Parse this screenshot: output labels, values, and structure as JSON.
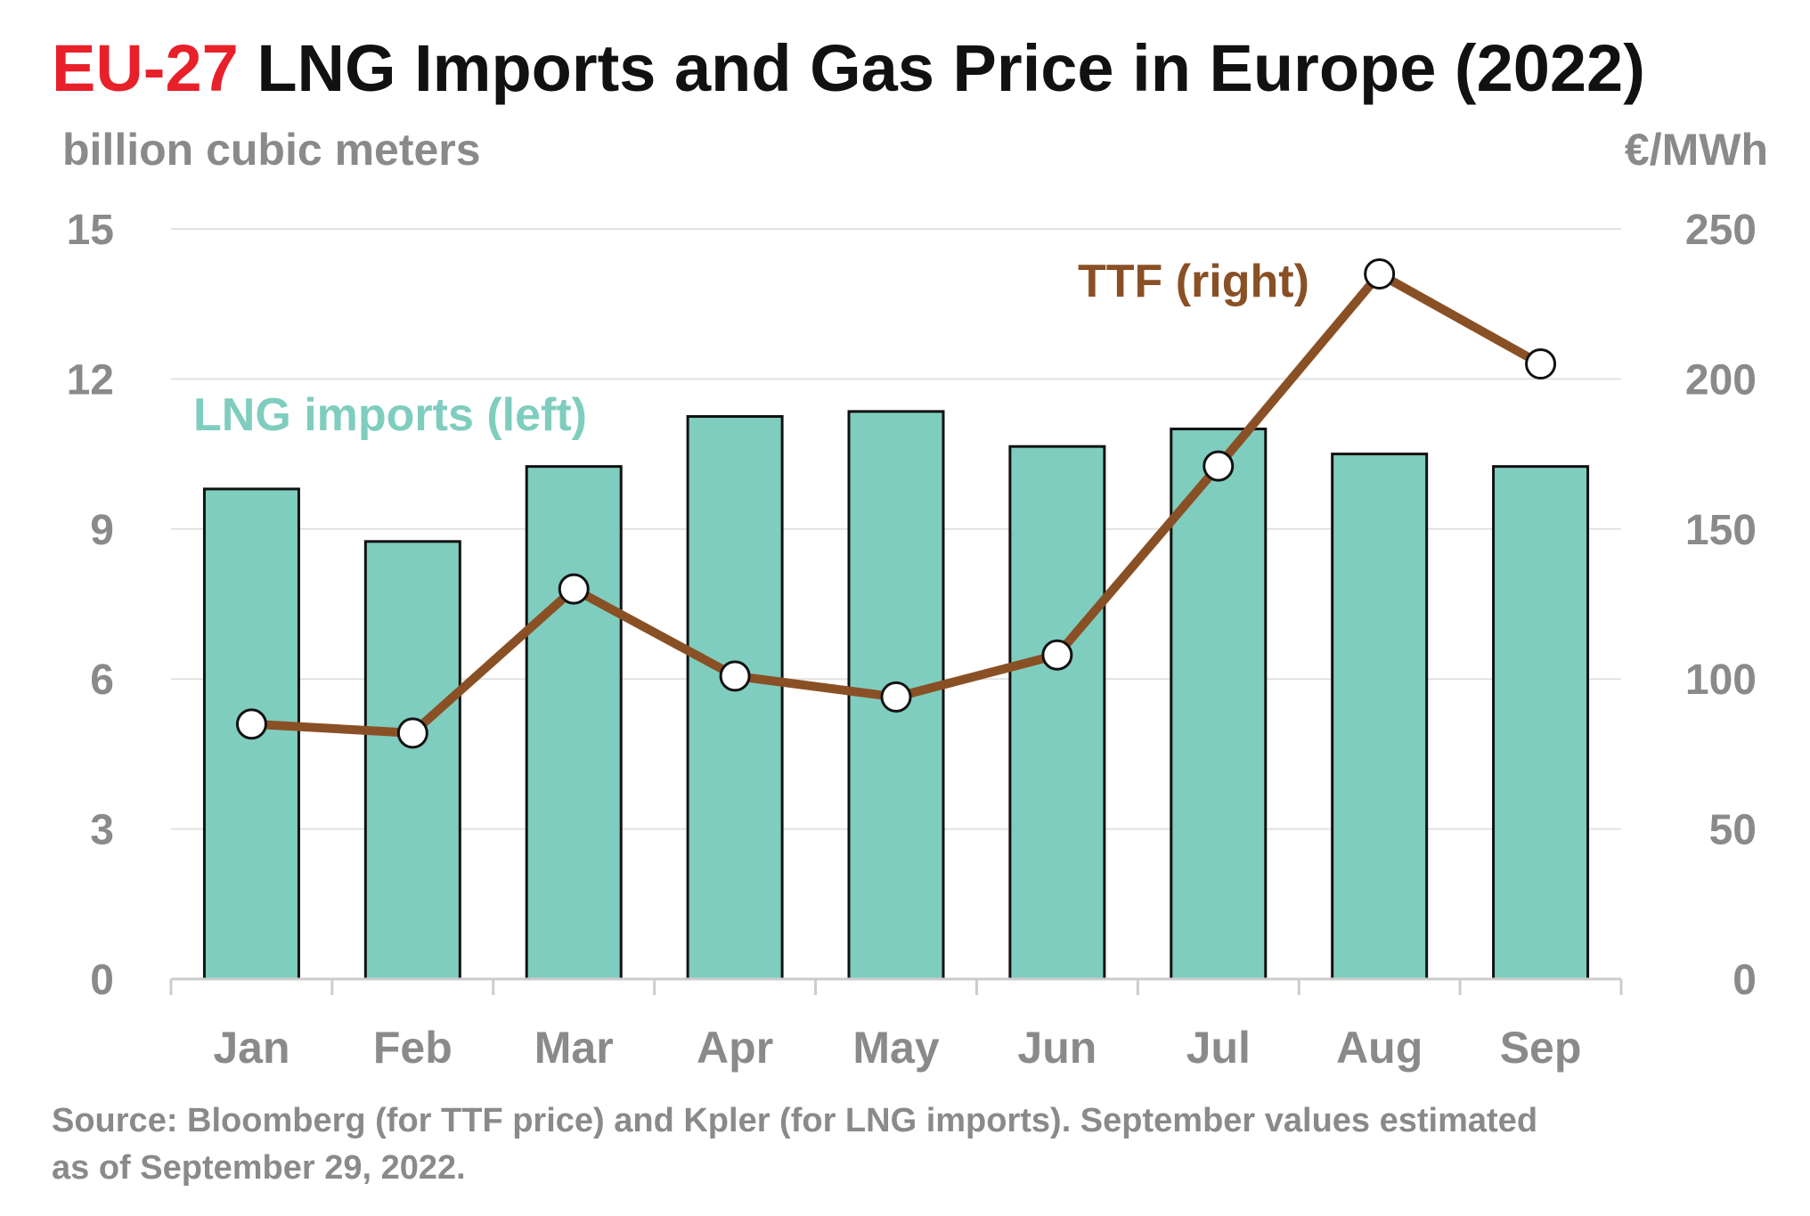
{
  "title": {
    "prefix": "EU-27",
    "main": " LNG Imports and Gas Price in Europe (2022)"
  },
  "source_line1": "Source: Bloomberg (for TTF price) and Kpler (for LNG imports). September values estimated",
  "source_line2": "as of September 29, 2022.",
  "colors": {
    "title_accent": "#e8202a",
    "title_text": "#111111",
    "muted": "#8a8a8a",
    "bar_fill": "#7fcdbf",
    "bar_stroke": "#111111",
    "line": "#8a5025",
    "marker_fill": "#ffffff",
    "marker_stroke": "#111111",
    "grid": "#e2e2e2",
    "axis": "#cccccc",
    "lng_label": "#7fcdbf",
    "ttf_label": "#8a5025"
  },
  "chart_data": {
    "type": "bar+line",
    "categories": [
      "Jan",
      "Feb",
      "Mar",
      "Apr",
      "May",
      "Jun",
      "Jul",
      "Aug",
      "Sep"
    ],
    "left_axis": {
      "label": "billion cubic meters",
      "ticks": [
        "0",
        "3",
        "6",
        "9",
        "12",
        "15"
      ],
      "ylim": [
        0,
        15
      ]
    },
    "right_axis": {
      "label": "€/MWh",
      "ticks": [
        "0",
        "50",
        "100",
        "150",
        "200",
        "250"
      ],
      "ylim": [
        0,
        250
      ]
    },
    "series": [
      {
        "name": "LNG imports (left)",
        "type": "bar",
        "axis": "left",
        "values": [
          9.8,
          8.75,
          10.25,
          11.25,
          11.35,
          10.65,
          11.0,
          10.5,
          10.25
        ]
      },
      {
        "name": "TTF (right)",
        "type": "line",
        "axis": "right",
        "values": [
          85,
          82,
          130,
          101,
          94,
          108,
          171,
          235,
          205
        ]
      }
    ],
    "grid": true,
    "legend": "inline labels"
  }
}
